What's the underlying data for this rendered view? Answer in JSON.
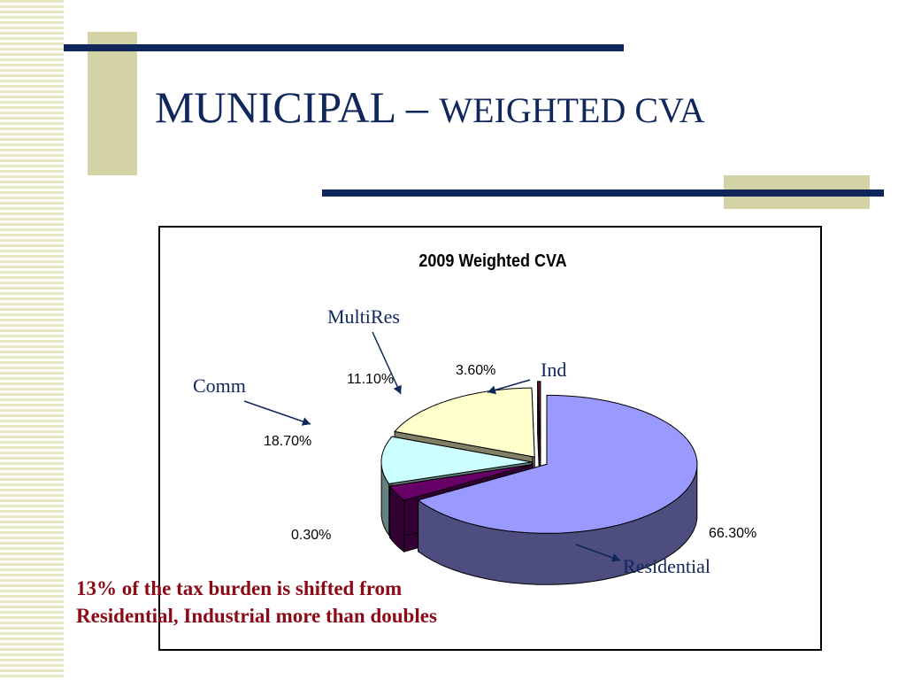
{
  "slide": {
    "title_main": "MUNICIPAL",
    "title_sep": " – ",
    "title_sub": "WEIGHTED CVA",
    "note_lines": [
      "13% of the tax burden is shifted from",
      "Residential, Industrial more than doubles"
    ]
  },
  "colors": {
    "title": "#10275b",
    "note": "#8b0a16",
    "callout": "#10275b",
    "accent_block": "#d3d3a6",
    "stripe": "#e6e6c2"
  },
  "chart_data": {
    "type": "pie",
    "title": "2009 Weighted CVA",
    "slices": [
      {
        "name": "Residential",
        "value": 66.3,
        "label": "66.30%",
        "color": "#9999ff"
      },
      {
        "name": "Ind",
        "value": 3.6,
        "label": "3.60%",
        "color": "#660066"
      },
      {
        "name": "MultiRes",
        "value": 11.1,
        "label": "11.10%",
        "color": "#ccffff"
      },
      {
        "name": "Comm",
        "value": 18.7,
        "label": "18.70%",
        "color": "#ffffcc"
      },
      {
        "name": "",
        "value": 0.3,
        "label": "0.30%",
        "color": "#6b1838"
      }
    ],
    "exploded": true,
    "style": "3d"
  }
}
